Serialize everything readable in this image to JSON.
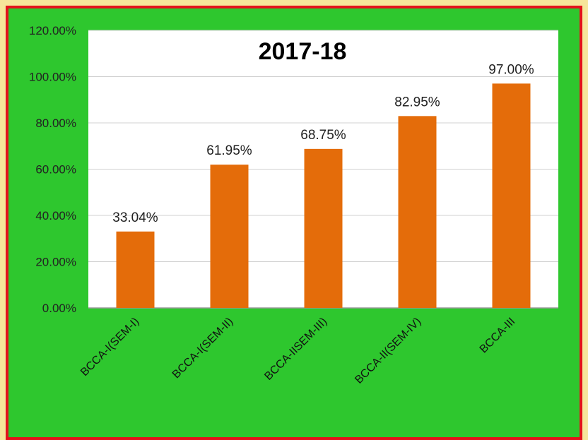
{
  "chart_data": {
    "type": "bar",
    "title": "2017-18",
    "categories": [
      "BCCA-I(SEM-I)",
      "BCCA-I(SEM-II)",
      "BCCA-IISEM-III)",
      "BCCA-II(SEM-IV)",
      "BCCA-III"
    ],
    "values": [
      33.04,
      61.95,
      68.75,
      82.95,
      97.0
    ],
    "data_labels": [
      "33.04%",
      "61.95%",
      "68.75%",
      "82.95%",
      "97.00%"
    ],
    "ylim": [
      0,
      120
    ],
    "yticks": [
      0,
      20,
      40,
      60,
      80,
      100,
      120
    ],
    "ytick_labels": [
      "0.00%",
      "20.00%",
      "40.00%",
      "60.00%",
      "80.00%",
      "100.00%",
      "120.00%"
    ],
    "grid": true,
    "colors": {
      "bar": "#e46c0a",
      "plot_background": "#ffffff",
      "outer_background": "#2ec72e",
      "border": "#e4121b",
      "gridline": "#d0d0d0"
    }
  }
}
